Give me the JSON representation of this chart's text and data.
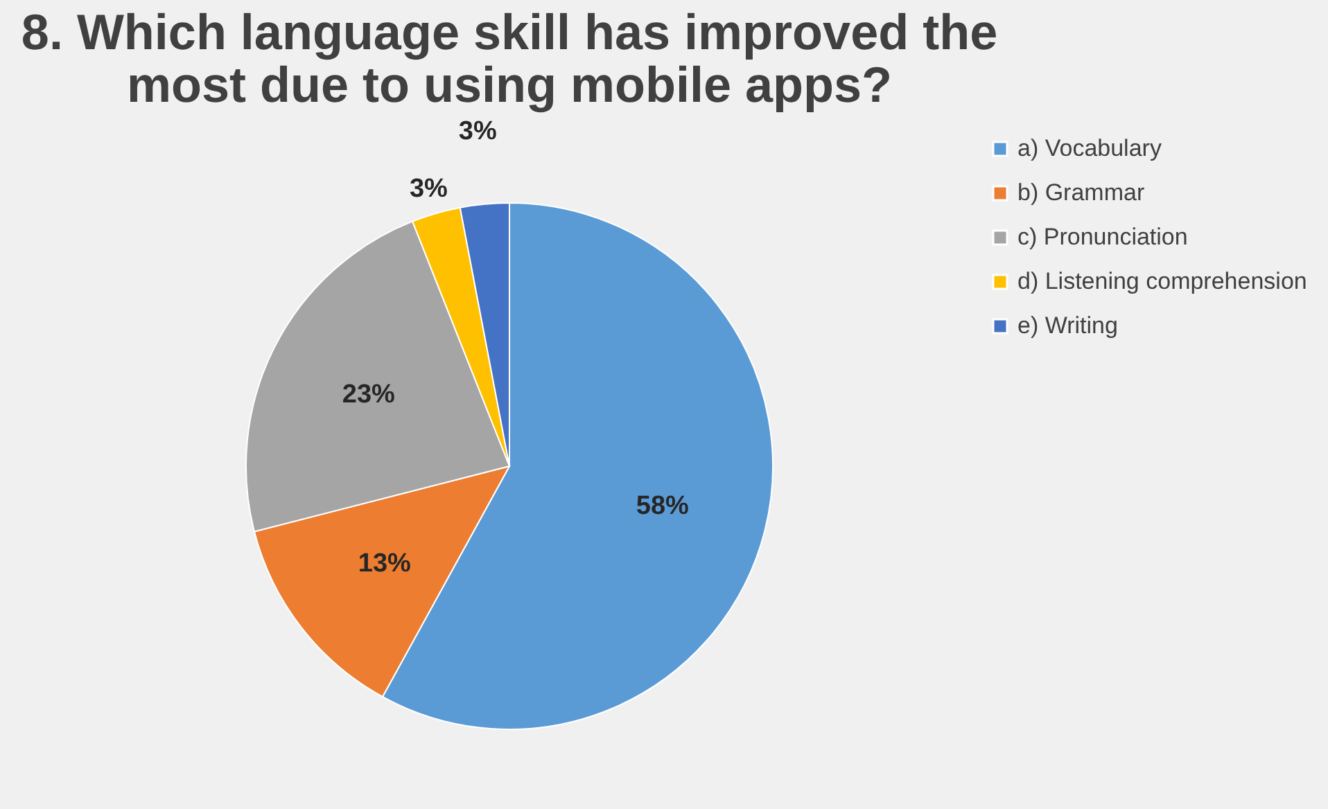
{
  "chart_data": {
    "type": "pie",
    "title": "8. Which language skill has improved the most due to using mobile apps?",
    "categories": [
      "a) Vocabulary",
      "b) Grammar",
      "c) Pronunciation",
      "d) Listening comprehension",
      "e) Writing"
    ],
    "values": [
      58,
      13,
      23,
      3,
      3
    ],
    "colors": [
      "#5b9bd5",
      "#ed7d31",
      "#a5a5a5",
      "#ffc000",
      "#4472c4"
    ],
    "value_labels": [
      "58%",
      "13%",
      "23%",
      "3%",
      "3%"
    ],
    "legend": "right"
  }
}
